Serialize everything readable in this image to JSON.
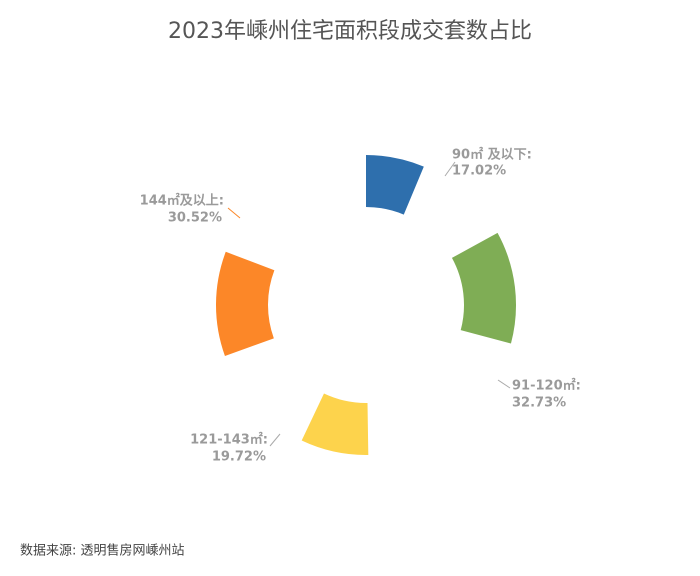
{
  "chart_data": {
    "type": "pie",
    "title": "2023年嵊州住宅面积段成交套数占比",
    "categories": [
      "90㎡ 及以下:",
      "91-120㎡:",
      "121-143㎡:",
      "144㎡及以上:"
    ],
    "values": [
      17.02,
      32.73,
      19.72,
      30.52
    ],
    "value_labels": [
      "17.02%",
      "32.73%",
      "19.72%",
      "30.52%"
    ],
    "colors": [
      "#2e6fad",
      "#7fad55",
      "#fdd34c",
      "#fc8728"
    ],
    "source": "数据来源: 透明售房网嵊州站"
  }
}
